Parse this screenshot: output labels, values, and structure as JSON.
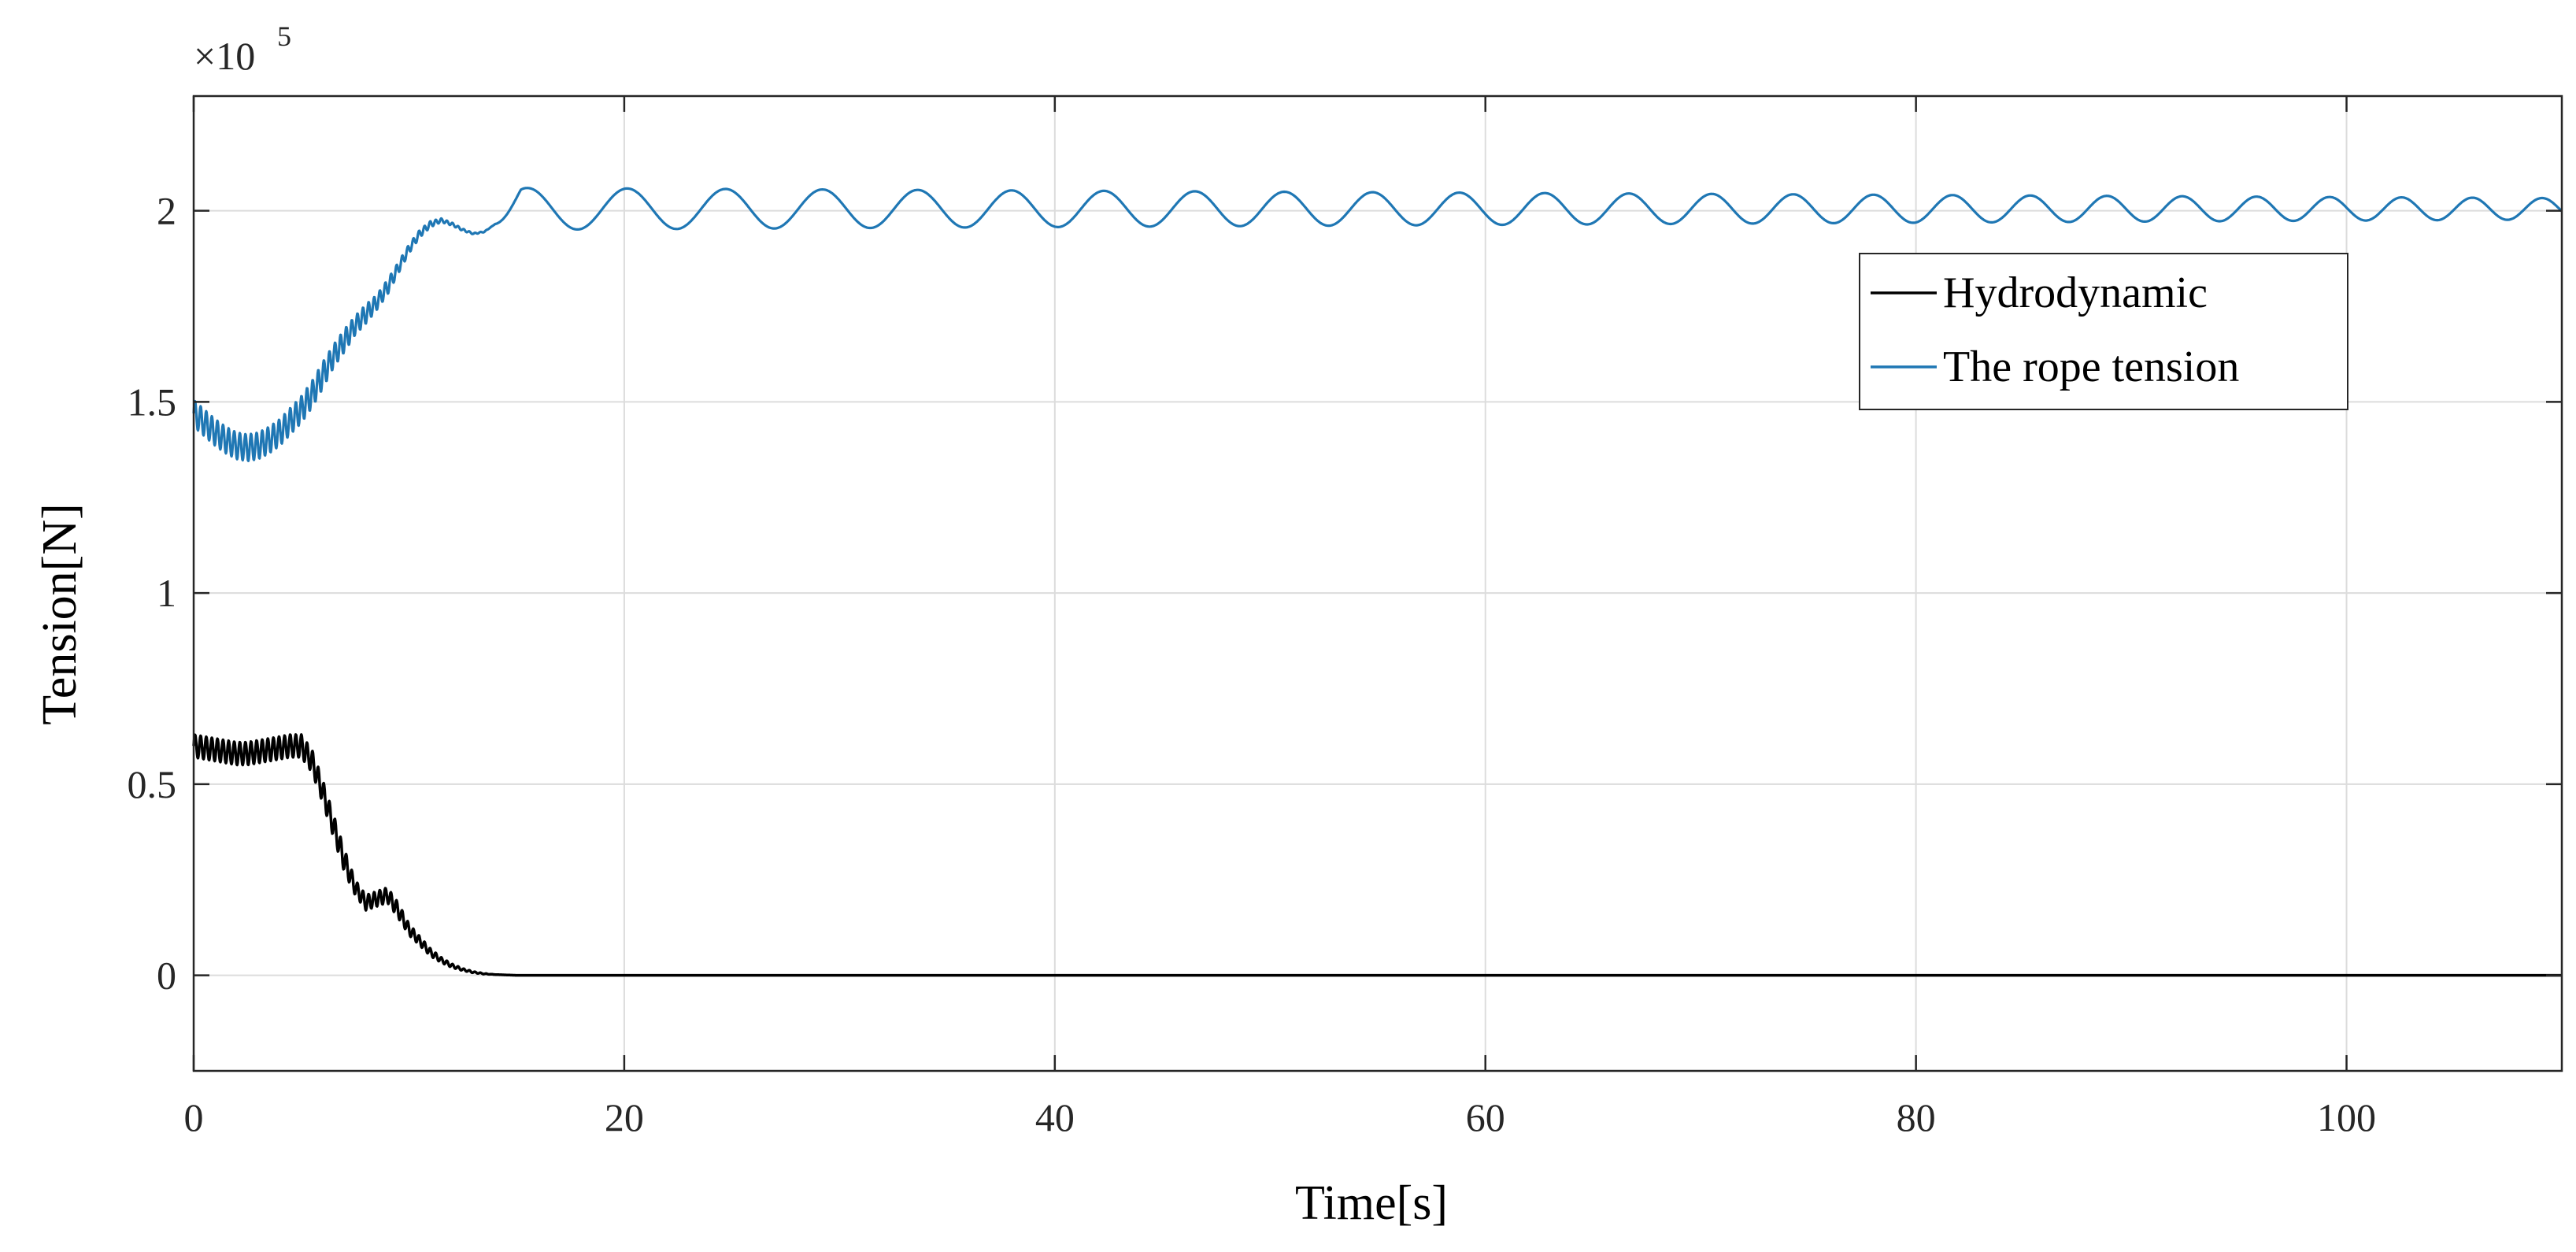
{
  "chart_data": {
    "type": "line",
    "xlabel": "Time[s]",
    "ylabel": "Tension[N]",
    "xlim": [
      0,
      110
    ],
    "ylim": [
      -0.25,
      2.3
    ],
    "y_scale_factor": "×10",
    "y_scale_exponent": "5",
    "grid": true,
    "legend_position": "upper right",
    "x_ticks": [
      {
        "value": 0,
        "label": "0"
      },
      {
        "value": 20,
        "label": "20"
      },
      {
        "value": 40,
        "label": "40"
      },
      {
        "value": 60,
        "label": "60"
      },
      {
        "value": 80,
        "label": "80"
      },
      {
        "value": 100,
        "label": "100"
      }
    ],
    "y_ticks": [
      {
        "value": 0,
        "label": "0"
      },
      {
        "value": 0.5,
        "label": "0.5"
      },
      {
        "value": 1,
        "label": "1"
      },
      {
        "value": 1.5,
        "label": "1.5"
      },
      {
        "value": 2,
        "label": "2"
      }
    ],
    "series": [
      {
        "name": "Hydrodynamic",
        "color": "#000000",
        "x": [
          0,
          0.5,
          1,
          1.5,
          2,
          2.5,
          3,
          3.5,
          4,
          4.5,
          5,
          5.5,
          6,
          6.5,
          7,
          7.5,
          8,
          8.5,
          9,
          9.5,
          10,
          10.5,
          11,
          11.5,
          12,
          12.5,
          13,
          13.5,
          14,
          15,
          20,
          40,
          60,
          80,
          100,
          110
        ],
        "y": [
          0.6,
          0.595,
          0.59,
          0.585,
          0.58,
          0.58,
          0.585,
          0.59,
          0.595,
          0.6,
          0.6,
          0.56,
          0.48,
          0.39,
          0.3,
          0.23,
          0.19,
          0.2,
          0.21,
          0.17,
          0.12,
          0.09,
          0.06,
          0.04,
          0.025,
          0.015,
          0.008,
          0.004,
          0.002,
          0,
          0,
          0,
          0,
          0,
          0,
          0
        ],
        "vibration_amplitude": [
          0.03,
          0.03,
          0.03,
          0.03,
          0.03,
          0.03,
          0.03,
          0.03,
          0.03,
          0.03,
          0.03,
          0.03,
          0.03,
          0.03,
          0.03,
          0.02,
          0.02,
          0.02,
          0.02,
          0.02,
          0.015,
          0.012,
          0.01,
          0.007,
          0.005,
          0.003,
          0.002,
          0.001,
          0,
          0,
          0,
          0,
          0,
          0,
          0,
          0
        ]
      },
      {
        "name": "The rope tension",
        "color": "#1f77b4",
        "x": [
          0,
          0.5,
          1,
          1.5,
          2,
          2.5,
          3,
          3.5,
          4,
          4.5,
          5,
          5.5,
          6,
          6.5,
          7,
          7.5,
          8,
          8.5,
          9,
          9.5,
          10,
          10.5,
          11,
          11.5,
          12,
          12.5,
          13,
          13.5,
          14
        ],
        "y": [
          1.47,
          1.445,
          1.42,
          1.4,
          1.385,
          1.38,
          1.385,
          1.4,
          1.42,
          1.45,
          1.48,
          1.52,
          1.57,
          1.62,
          1.66,
          1.7,
          1.73,
          1.76,
          1.8,
          1.85,
          1.9,
          1.94,
          1.965,
          1.975,
          1.965,
          1.95,
          1.94,
          1.945,
          1.965
        ],
        "vibration_amplitude": [
          0.035,
          0.035,
          0.035,
          0.035,
          0.035,
          0.035,
          0.035,
          0.035,
          0.035,
          0.035,
          0.035,
          0.035,
          0.035,
          0.03,
          0.03,
          0.025,
          0.025,
          0.02,
          0.02,
          0.015,
          0.012,
          0.01,
          0.008,
          0.005,
          0.004,
          0.003,
          0.002,
          0.001,
          0
        ],
        "steady_oscillation": {
          "x_start": 14,
          "x_end": 110,
          "mean": 2.005,
          "amplitude_start": 0.055,
          "amplitude_end": 0.028,
          "period_start": 4.7,
          "period_end": 3.2,
          "first_peak_x": 15.5
        }
      }
    ]
  }
}
